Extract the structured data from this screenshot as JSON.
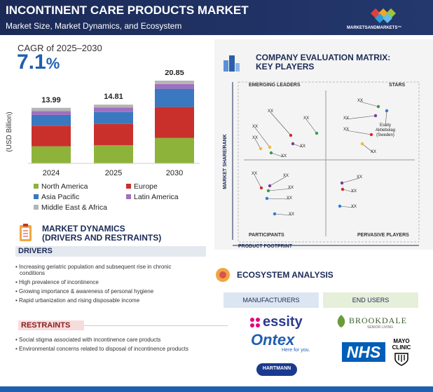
{
  "header": {
    "title": "INCONTINENT CARE PRODUCTS MARKET",
    "subtitle": "Market Size, Market Dynamics, and Ecosystem",
    "brand": "MARKETSANDMARKETS™"
  },
  "cagr": {
    "label": "CAGR of 2025–2030",
    "value": "7.1",
    "unit": "%"
  },
  "chart_data": {
    "type": "bar",
    "stacked": true,
    "y_label": "(USD Billion)",
    "categories": [
      "2024",
      "2025",
      "2030"
    ],
    "totals": [
      13.99,
      14.81,
      20.85
    ],
    "series": [
      {
        "name": "North America",
        "color": "#8db33a",
        "values": [
          4.3,
          4.6,
          6.4
        ]
      },
      {
        "name": "Europe",
        "color": "#c9302c",
        "values": [
          5.2,
          5.35,
          7.8
        ]
      },
      {
        "name": "Asia Pacific",
        "color": "#3a78c0",
        "values": [
          2.7,
          3.0,
          4.6
        ]
      },
      {
        "name": "Latin America",
        "color": "#a070c0",
        "values": [
          1.0,
          1.1,
          1.2
        ]
      },
      {
        "name": "Middle East & Africa",
        "color": "#b5b5b5",
        "values": [
          0.8,
          0.76,
          0.85
        ]
      }
    ]
  },
  "dynamics": {
    "title": "MARKET DYNAMICS",
    "subtitle": "(DRIVERS AND RESTRAINTS)",
    "drivers_label": "DRIVERS",
    "drivers": [
      "Increasing geriatric population and subsequent rise in chronic conditions",
      "High prevalence of incontinence",
      "Growing importance & awareness of personal hygiene",
      "Rapid urbanization and rising disposable income"
    ],
    "restraints_label": "RESTRAINTS",
    "restraints": [
      "Social stigma associated with incontinence care products",
      "Environmental concerns related to disposal of incontinence products"
    ]
  },
  "matrix": {
    "title": "COMPANY EVALUATION MATRIX:",
    "subtitle": "KEY PLAYERS",
    "emerging_leaders": "EMERGING LEADERS",
    "stars": "STARS",
    "participants": "PARTICIPANTS",
    "pervasive_players": "PERVASIVE PLAYERS",
    "y_axis": "MARKET SHARE/RANK",
    "x_axis": "PRODUCT FOOTPRINT",
    "players": [
      "XX",
      "XX",
      "XX",
      "XX",
      "XX",
      "XX",
      "XX",
      "XX",
      "Essity Aktiebolag (Sweden)",
      "XX",
      "XX",
      "XX",
      "XX",
      "XX",
      "XX",
      "XX",
      "XX",
      "XX",
      "XX"
    ]
  },
  "ecosystem": {
    "title": "ECOSYSTEM ANALYSIS",
    "manufacturers": "MANUFACTURERS",
    "end_users": "END USERS",
    "manufacturer_logos": [
      "essity",
      "Ontex",
      "Here for you.",
      "HARTMANN"
    ],
    "end_user_logos": [
      "BROOKDALE",
      "SENIOR LIVING",
      "NHS",
      "MAYO",
      "CLINIC"
    ]
  }
}
